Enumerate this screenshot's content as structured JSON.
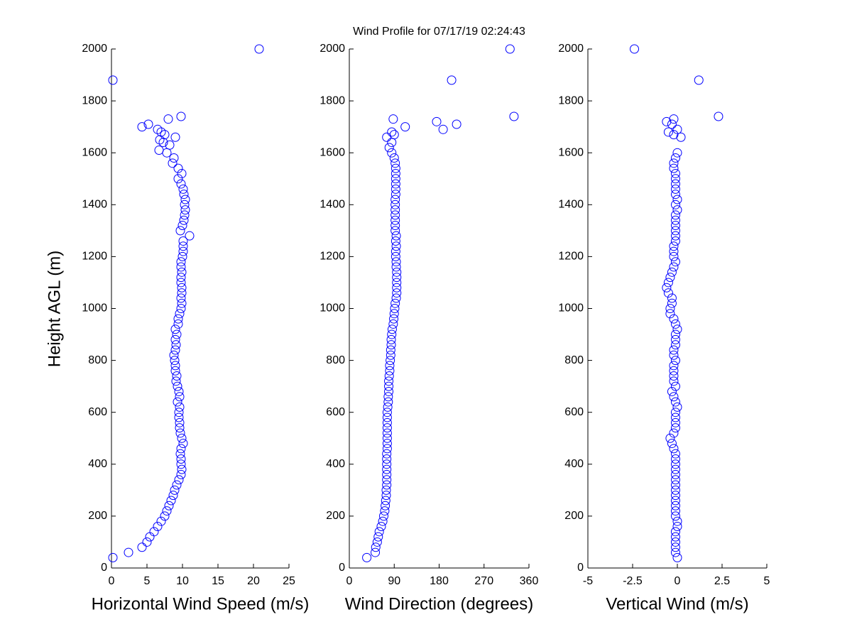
{
  "chart_data": [
    {
      "type": "scatter",
      "xlabel": "Horizontal Wind Speed (m/s)",
      "ylabel": "Height AGL (m)",
      "color": "#0000ff",
      "xlim": [
        0,
        25
      ],
      "xticks": [
        0,
        5,
        10,
        15,
        20,
        25
      ],
      "ylim": [
        0,
        2000
      ],
      "yticks": [
        0,
        200,
        400,
        600,
        800,
        1000,
        1200,
        1400,
        1600,
        1800,
        2000
      ],
      "x": [
        0.2,
        2.4,
        4.3,
        5,
        5.4,
        6,
        6.5,
        7,
        7.5,
        7.8,
        8.1,
        8.4,
        8.7,
        8.9,
        9.2,
        9.5,
        9.8,
        9.9,
        9.8,
        9.8,
        9.7,
        9.8,
        10.1,
        9.9,
        9.7,
        9.6,
        9.6,
        9.5,
        9.5,
        9.6,
        9.3,
        9.6,
        9.5,
        9.3,
        9.1,
        9.2,
        9.0,
        9.0,
        8.9,
        8.8,
        9.0,
        9.1,
        9.0,
        9.2,
        9.0,
        9.4,
        9.4,
        9.6,
        9.8,
        9.9,
        9.8,
        9.9,
        9.9,
        9.8,
        9.8,
        9.9,
        9.8,
        9.8,
        10.0,
        10.1,
        10.1,
        10.1,
        11.0,
        9.7,
        10.0,
        10.2,
        10.3,
        10.4,
        10.3,
        10.4,
        10.2,
        10.1,
        9.8,
        9.4,
        9.9,
        9.4,
        8.6,
        8.8,
        7.8,
        4.3,
        5.2,
        6.5,
        7,
        7.5,
        6.8,
        7.3,
        8.2,
        6.7,
        9,
        8,
        9.8,
        0.2,
        20.8
      ],
      "y": [
        40,
        60,
        80,
        100,
        120,
        140,
        160,
        180,
        200,
        220,
        240,
        260,
        280,
        300,
        320,
        340,
        360,
        380,
        400,
        420,
        440,
        460,
        480,
        500,
        520,
        540,
        560,
        580,
        600,
        620,
        640,
        660,
        680,
        700,
        720,
        740,
        760,
        780,
        800,
        820,
        840,
        860,
        880,
        900,
        920,
        940,
        960,
        980,
        1000,
        1020,
        1040,
        1060,
        1080,
        1100,
        1120,
        1140,
        1160,
        1180,
        1200,
        1220,
        1240,
        1260,
        1280,
        1300,
        1320,
        1340,
        1360,
        1380,
        1400,
        1420,
        1440,
        1460,
        1480,
        1500,
        1520,
        1540,
        1560,
        1580,
        1600,
        1700,
        1710,
        1690,
        1680,
        1670,
        1650,
        1640,
        1630,
        1610,
        1660,
        1730,
        1740,
        1880,
        2000
      ]
    },
    {
      "type": "scatter",
      "title": "Wind Profile for  07/17/19 02:24:43",
      "xlabel": "Wind Direction (degrees)",
      "color": "#0000ff",
      "xlim": [
        0,
        360
      ],
      "xticks": [
        0,
        90,
        180,
        270,
        360
      ],
      "ylim": [
        0,
        2000
      ],
      "yticks": [
        0,
        200,
        400,
        600,
        800,
        1000,
        1200,
        1400,
        1600,
        1800,
        2000
      ],
      "x": [
        35,
        52,
        53,
        56,
        58,
        60,
        64,
        67,
        69,
        71,
        72,
        73,
        74,
        74,
        75,
        75,
        75,
        75,
        75,
        75,
        75,
        76,
        76,
        76,
        76,
        76,
        76,
        76,
        76,
        77,
        78,
        78,
        79,
        79,
        79,
        80,
        81,
        81,
        82,
        83,
        83,
        84,
        84,
        85,
        86,
        88,
        89,
        90,
        91,
        92,
        94,
        95,
        95,
        95,
        95,
        95,
        94,
        94,
        93,
        93,
        94,
        93,
        94,
        92,
        92,
        92,
        92,
        92,
        92,
        92,
        93,
        93,
        93,
        93,
        93,
        93,
        92,
        90,
        85,
        80,
        85,
        75,
        85,
        90,
        88,
        112,
        175,
        188,
        215,
        330,
        205,
        322
      ],
      "y": [
        40,
        60,
        80,
        100,
        120,
        140,
        160,
        180,
        200,
        220,
        240,
        260,
        280,
        300,
        320,
        340,
        360,
        380,
        400,
        420,
        440,
        460,
        480,
        500,
        520,
        540,
        560,
        580,
        600,
        620,
        640,
        660,
        680,
        700,
        720,
        740,
        760,
        780,
        800,
        820,
        840,
        860,
        880,
        900,
        920,
        940,
        960,
        980,
        1000,
        1020,
        1040,
        1060,
        1080,
        1100,
        1120,
        1140,
        1160,
        1180,
        1200,
        1220,
        1240,
        1260,
        1280,
        1300,
        1320,
        1340,
        1360,
        1380,
        1400,
        1420,
        1440,
        1460,
        1480,
        1500,
        1520,
        1540,
        1560,
        1580,
        1600,
        1620,
        1640,
        1660,
        1680,
        1670,
        1730,
        1700,
        1720,
        1690,
        1710,
        1740,
        1880,
        2000
      ]
    },
    {
      "type": "scatter",
      "xlabel": "Vertical Wind (m/s)",
      "color": "#0000ff",
      "xlim": [
        -5,
        5
      ],
      "xticks": [
        -5,
        -2.5,
        0,
        2.5,
        5
      ],
      "ylim": [
        0,
        2000
      ],
      "yticks": [
        0,
        200,
        400,
        600,
        800,
        1000,
        1200,
        1400,
        1600,
        1800,
        2000
      ],
      "x": [
        0,
        -0.1,
        -0.1,
        -0.1,
        -0.1,
        -0.1,
        0,
        0,
        -0.1,
        -0.1,
        -0.1,
        -0.1,
        -0.1,
        -0.1,
        -0.1,
        -0.1,
        -0.1,
        -0.1,
        -0.1,
        -0.1,
        -0.1,
        -0.2,
        -0.3,
        -0.4,
        -0.2,
        -0.1,
        -0.1,
        -0.1,
        -0.1,
        0,
        -0.1,
        -0.2,
        -0.3,
        -0.1,
        -0.2,
        -0.2,
        -0.2,
        -0.2,
        -0.1,
        -0.2,
        -0.2,
        -0.1,
        -0.1,
        -0.1,
        0,
        -0.1,
        -0.2,
        -0.4,
        -0.4,
        -0.3,
        -0.3,
        -0.5,
        -0.6,
        -0.5,
        -0.4,
        -0.3,
        -0.2,
        -0.1,
        -0.2,
        -0.2,
        -0.2,
        -0.1,
        -0.1,
        -0.1,
        -0.1,
        -0.1,
        -0.1,
        0,
        -0.1,
        0,
        -0.1,
        -0.1,
        -0.1,
        -0.1,
        -0.1,
        -0.2,
        -0.2,
        -0.1,
        0,
        -0.6,
        -0.5,
        -0.2,
        -0.3,
        0,
        -0.2,
        0.2,
        2.3,
        1.2,
        -2.4
      ],
      "y": [
        40,
        60,
        80,
        100,
        120,
        140,
        160,
        180,
        200,
        220,
        240,
        260,
        280,
        300,
        320,
        340,
        360,
        380,
        400,
        420,
        440,
        460,
        480,
        500,
        520,
        540,
        560,
        580,
        600,
        620,
        640,
        660,
        680,
        700,
        720,
        740,
        760,
        780,
        800,
        820,
        840,
        860,
        880,
        900,
        920,
        940,
        960,
        980,
        1000,
        1020,
        1040,
        1060,
        1080,
        1100,
        1120,
        1140,
        1160,
        1180,
        1200,
        1220,
        1240,
        1260,
        1280,
        1300,
        1320,
        1340,
        1360,
        1380,
        1400,
        1420,
        1440,
        1460,
        1480,
        1500,
        1520,
        1540,
        1560,
        1580,
        1600,
        1720,
        1680,
        1730,
        1710,
        1690,
        1670,
        1660,
        1740,
        1880,
        2000
      ]
    }
  ]
}
